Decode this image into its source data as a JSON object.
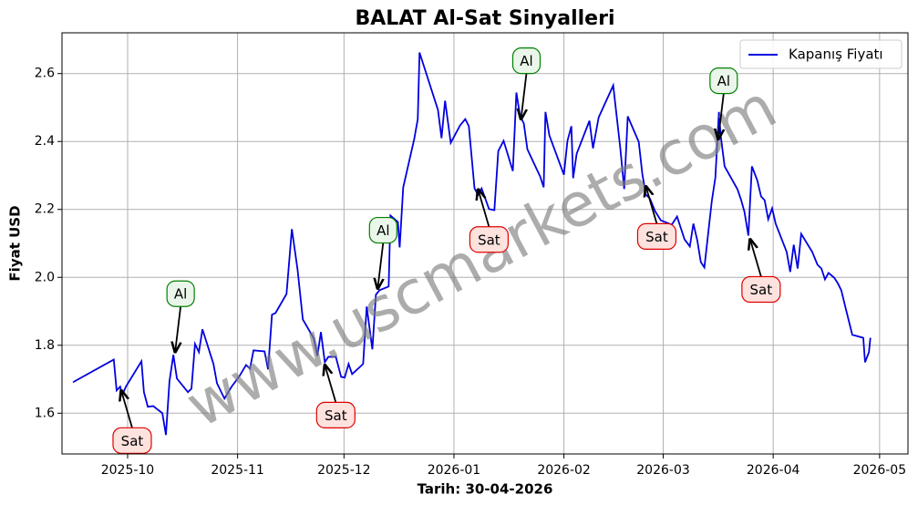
{
  "chart_data": {
    "type": "line",
    "title": "BALAT Al-Sat Sinyalleri",
    "xlabel": "Tarih: 30-04-2026",
    "ylabel": "Fiyat USD",
    "watermark": "www.uscmarkets.com",
    "grid": true,
    "legend": "upper right",
    "xlim": [
      -18.5,
      220
    ],
    "ylim": [
      1.48,
      2.72
    ],
    "xticks": [
      {
        "value": 0,
        "label": "2025-10"
      },
      {
        "value": 31,
        "label": "2025-11"
      },
      {
        "value": 61,
        "label": "2025-12"
      },
      {
        "value": 92,
        "label": "2026-01"
      },
      {
        "value": 123,
        "label": "2026-02"
      },
      {
        "value": 151,
        "label": "2026-03"
      },
      {
        "value": 182,
        "label": "2026-04"
      },
      {
        "value": 212,
        "label": "2026-05"
      }
    ],
    "yticks": [
      1.6,
      1.8,
      {
        "value": 2,
        "label": "2.0"
      },
      2.2,
      2.4,
      2.6
    ],
    "x": [
      -15.4,
      -14.4,
      -3.9,
      -3.1,
      -2.1,
      -1.5,
      -0.5,
      3.9,
      4.6,
      5.7,
      7.2,
      9.8,
      10.8,
      11.8,
      12.9,
      13.9,
      17.0,
      18.0,
      19.0,
      20.1,
      21.1,
      24.2,
      25.2,
      27.3,
      29.3,
      31.4,
      33.4,
      34.5,
      35.5,
      38.6,
      39.6,
      40.7,
      41.7,
      44.8,
      46.3,
      47.9,
      49.4,
      52.5,
      53.5,
      54.5,
      55.6,
      56.6,
      58.7,
      60.2,
      61.2,
      62.3,
      63.3,
      66.4,
      67.4,
      69.0,
      70.0,
      71.0,
      73.6,
      74.1,
      76.2,
      76.7,
      77.7,
      80.8,
      81.8,
      82.3,
      87.5,
      88.5,
      89.5,
      91.1,
      93.7,
      95.2,
      96.2,
      97.8,
      98.8,
      99.8,
      101.9,
      103.4,
      104.5,
      106.0,
      108.6,
      109.6,
      110.6,
      111.7,
      112.7,
      116.3,
      117.3,
      117.8,
      118.9,
      123.0,
      124.0,
      125.1,
      125.6,
      126.6,
      130.2,
      131.2,
      132.8,
      136.9,
      138.9,
      140.0,
      141.0,
      144.1,
      145.1,
      146.1,
      147.2,
      148.7,
      150.3,
      153.4,
      154.9,
      157.0,
      158.5,
      159.5,
      160.6,
      161.6,
      162.6,
      164.7,
      165.7,
      166.7,
      167.2,
      168.3,
      171.9,
      172.9,
      173.9,
      175.0,
      176.0,
      177.5,
      178.6,
      179.6,
      180.6,
      181.7,
      182.7,
      185.8,
      186.8,
      187.8,
      188.9,
      189.9,
      193.0,
      194.5,
      195.6,
      196.6,
      197.6,
      199.2,
      200.2,
      201.2,
      202.2,
      204.3,
      207.4,
      207.9,
      209.0,
      209.4
    ],
    "series": [
      {
        "name": "Kapanış Fiyatı",
        "color": "#0000e0",
        "values": [
          1.691,
          1.697,
          1.758,
          1.667,
          1.678,
          1.654,
          1.678,
          1.753,
          1.662,
          1.619,
          1.621,
          1.6,
          1.536,
          1.694,
          1.772,
          1.702,
          1.662,
          1.672,
          1.804,
          1.78,
          1.847,
          1.745,
          1.688,
          1.643,
          1.678,
          1.707,
          1.742,
          1.731,
          1.785,
          1.782,
          1.729,
          1.89,
          1.895,
          1.951,
          2.142,
          2.024,
          1.876,
          1.82,
          1.769,
          1.839,
          1.75,
          1.766,
          1.766,
          1.707,
          1.705,
          1.745,
          1.715,
          1.745,
          1.914,
          1.788,
          1.949,
          1.962,
          1.973,
          2.182,
          2.163,
          2.088,
          2.265,
          2.407,
          2.466,
          2.662,
          2.493,
          2.41,
          2.52,
          2.396,
          2.447,
          2.466,
          2.445,
          2.262,
          2.243,
          2.262,
          2.201,
          2.198,
          2.372,
          2.402,
          2.313,
          2.544,
          2.477,
          2.453,
          2.377,
          2.297,
          2.265,
          2.487,
          2.418,
          2.302,
          2.402,
          2.445,
          2.292,
          2.364,
          2.461,
          2.38,
          2.471,
          2.565,
          2.38,
          2.26,
          2.474,
          2.399,
          2.305,
          2.243,
          2.233,
          2.195,
          2.168,
          2.155,
          2.179,
          2.112,
          2.091,
          2.158,
          2.109,
          2.045,
          2.029,
          2.225,
          2.294,
          2.487,
          2.418,
          2.327,
          2.26,
          2.23,
          2.193,
          2.123,
          2.327,
          2.286,
          2.238,
          2.227,
          2.171,
          2.203,
          2.158,
          2.075,
          2.016,
          2.096,
          2.026,
          2.128,
          2.075,
          2.037,
          2.026,
          1.994,
          2.013,
          1.999,
          1.983,
          1.962,
          1.919,
          1.831,
          1.822,
          1.75,
          1.78,
          1.822
        ]
      }
    ],
    "annotations": [
      {
        "text": "Sat",
        "x": -1.8,
        "y": 1.667
      },
      {
        "text": "Al",
        "x": 13.4,
        "y": 1.78
      },
      {
        "text": "Sat",
        "x": 55.6,
        "y": 1.742
      },
      {
        "text": "Al",
        "x": 70.5,
        "y": 1.967
      },
      {
        "text": "Sat",
        "x": 98.8,
        "y": 2.259
      },
      {
        "text": "Al",
        "x": 110.9,
        "y": 2.466
      },
      {
        "text": "Sat",
        "x": 146.1,
        "y": 2.268
      },
      {
        "text": "Al",
        "x": 166.5,
        "y": 2.407
      },
      {
        "text": "Sat",
        "x": 175.5,
        "y": 2.112
      }
    ],
    "annotation_styles": {
      "Al": {
        "edge": "#008000",
        "face": "#eaf6ea"
      },
      "Sat": {
        "edge": "#e00000",
        "face": "#fde2de"
      }
    }
  }
}
